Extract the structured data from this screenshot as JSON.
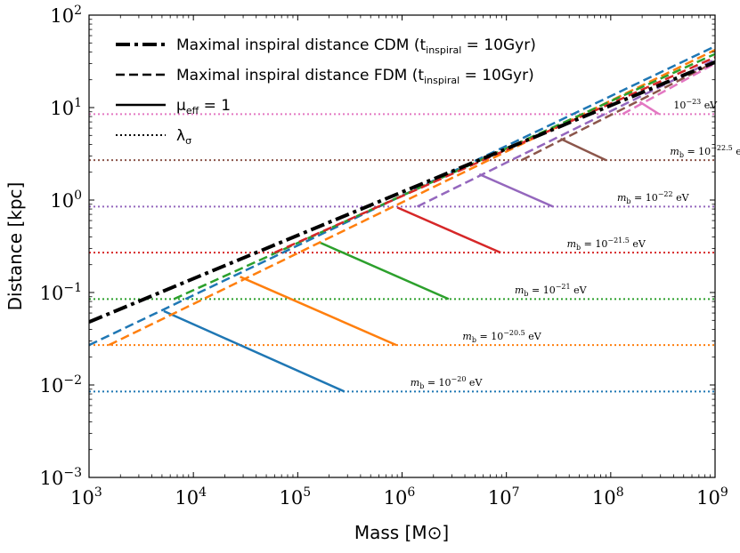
{
  "chart_data": {
    "type": "line",
    "xscale": "log",
    "yscale": "log",
    "xlim": [
      1000,
      1000000000
    ],
    "ylim": [
      0.001,
      100
    ],
    "xlabel": "Mass [M⊙]",
    "ylabel": "Distance [kpc]",
    "x_ticks": [
      {
        "value": 1000,
        "base": "10",
        "exp": "3"
      },
      {
        "value": 10000,
        "base": "10",
        "exp": "4"
      },
      {
        "value": 100000,
        "base": "10",
        "exp": "5"
      },
      {
        "value": 1000000,
        "base": "10",
        "exp": "6"
      },
      {
        "value": 10000000,
        "base": "10",
        "exp": "7"
      },
      {
        "value": 100000000,
        "base": "10",
        "exp": "8"
      },
      {
        "value": 1000000000,
        "base": "10",
        "exp": "9"
      }
    ],
    "y_ticks": [
      {
        "value": 0.001,
        "base": "10",
        "exp": "−3"
      },
      {
        "value": 0.01,
        "base": "10",
        "exp": "−2"
      },
      {
        "value": 0.1,
        "base": "10",
        "exp": "−1"
      },
      {
        "value": 1,
        "base": "10",
        "exp": "0"
      },
      {
        "value": 10,
        "base": "10",
        "exp": "1"
      },
      {
        "value": 100,
        "base": "10",
        "exp": "2"
      }
    ],
    "legend": [
      {
        "style": "dashdot",
        "label": "Maximal inspiral distance CDM (t",
        "sub": "inspiral",
        "rest": " = 10Gyr)"
      },
      {
        "style": "dashed",
        "label": "Maximal inspiral distance FDM (t",
        "sub": "inspiral",
        "rest": " = 10Gyr)"
      },
      {
        "style": "solid",
        "label": "μ",
        "sub": "eff",
        "rest": " = 1"
      },
      {
        "style": "dotted",
        "label": "λ",
        "sub": "σ",
        "rest": ""
      }
    ],
    "cdm_line": {
      "x": [
        1000,
        1000000000
      ],
      "y": [
        0.048,
        31
      ],
      "color": "#000000"
    },
    "series": [
      {
        "name": "m_b = 10^-20 eV",
        "color": "#1f77b4",
        "lambda": 0.0085,
        "fdm_x": [
          1000,
          1000000000
        ],
        "fdm_y": [
          0.027,
          46
        ],
        "mu_x": [
          5200,
          280000
        ],
        "mu_y": [
          0.063,
          0.0085
        ],
        "label_prefix": "m",
        "label_sub": "b",
        "label_mid": " = 10",
        "label_exp": "−20",
        "label_unit": " eV",
        "label_x": 1200000,
        "label_y": 0.0098
      },
      {
        "name": "m_b = 10^-20.5 eV",
        "color": "#ff7f0e",
        "lambda": 0.027,
        "fdm_x": [
          1550,
          1000000000
        ],
        "fdm_y": [
          0.027,
          42
        ],
        "mu_x": [
          28000,
          880000
        ],
        "mu_y": [
          0.148,
          0.027
        ],
        "label_prefix": "m",
        "label_sub": "b",
        "label_mid": " = 10",
        "label_exp": "−20.5",
        "label_unit": " eV",
        "label_x": 3800000,
        "label_y": 0.031
      },
      {
        "name": "m_b = 10^-21 eV",
        "color": "#2ca02c",
        "lambda": 0.085,
        "fdm_x": [
          6500,
          1000000000
        ],
        "fdm_y": [
          0.085,
          38
        ],
        "mu_x": [
          160000,
          2800000
        ],
        "mu_y": [
          0.35,
          0.085
        ],
        "label_prefix": "m",
        "label_sub": "b",
        "label_mid": " = 10",
        "label_exp": "−21",
        "label_unit": " eV",
        "label_x": 12000000,
        "label_y": 0.098
      },
      {
        "name": "m_b = 10^-21.5 eV",
        "color": "#d62728",
        "lambda": 0.27,
        "fdm_x": [
          60000,
          1000000000
        ],
        "fdm_y": [
          0.27,
          35
        ],
        "mu_x": [
          900000,
          8800000
        ],
        "mu_y": [
          0.83,
          0.27
        ],
        "label_prefix": "m",
        "label_sub": "b",
        "label_mid": " = 10",
        "label_exp": "−21.5",
        "label_unit": " eV",
        "label_x": 38000000,
        "label_y": 0.31
      },
      {
        "name": "m_b = 10^-22 eV",
        "color": "#9467bd",
        "lambda": 0.85,
        "fdm_x": [
          1400000,
          1000000000
        ],
        "fdm_y": [
          0.85,
          33
        ],
        "mu_x": [
          5500000,
          28000000
        ],
        "mu_y": [
          1.9,
          0.85
        ],
        "label_prefix": "m",
        "label_sub": "b",
        "label_mid": " = 10",
        "label_exp": "−22",
        "label_unit": " eV",
        "label_x": 115000000,
        "label_y": 0.98
      },
      {
        "name": "m_b = 10^-22.5 eV",
        "color": "#8c564b",
        "lambda": 2.7,
        "fdm_x": [
          14000000,
          1000000000
        ],
        "fdm_y": [
          2.7,
          31
        ],
        "mu_x": [
          33000000,
          90000000
        ],
        "mu_y": [
          4.6,
          2.7
        ],
        "label_prefix": "m",
        "label_sub": "b",
        "label_mid": " = 10",
        "label_exp": "−22.5",
        "label_unit": " eV",
        "label_x": 370000000,
        "label_y": 3.1
      },
      {
        "name": "m_b = 10^-23 eV",
        "color": "#e377c2",
        "lambda": 8.5,
        "fdm_x": [
          130000000,
          1000000000
        ],
        "fdm_y": [
          8.5,
          30
        ],
        "mu_x": [
          190000000,
          290000000
        ],
        "mu_y": [
          11.5,
          8.5
        ],
        "label_prefix": "",
        "label_sub": "",
        "label_mid": "10",
        "label_exp": "−23",
        "label_unit": " eV",
        "label_x": 400000000,
        "label_y": 9.8
      }
    ]
  }
}
